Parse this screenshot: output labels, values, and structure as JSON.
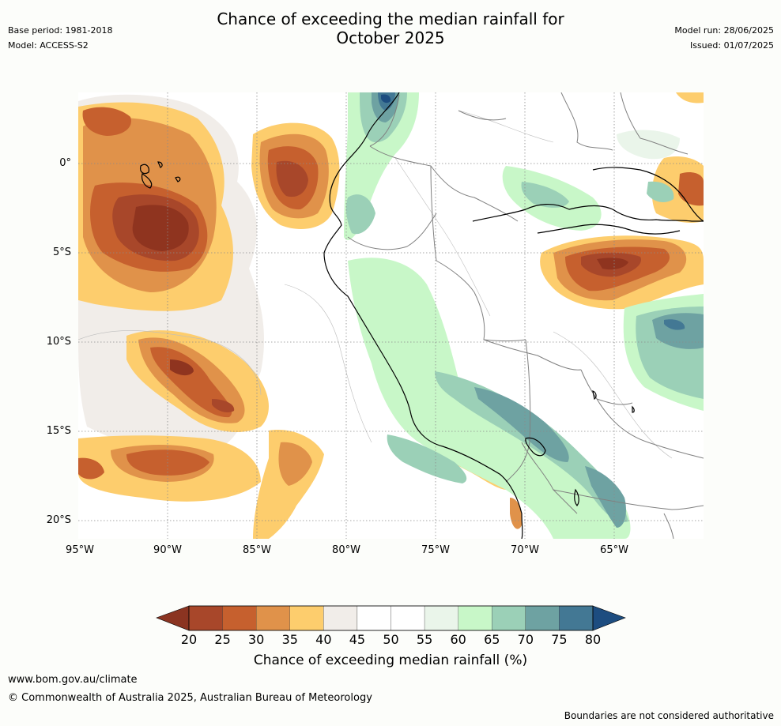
{
  "header": {
    "title_line1": "Chance of exceeding the median rainfall for",
    "title_line2": "October 2025",
    "base_period": "Base period: 1981-2018",
    "model": "Model: ACCESS-S2",
    "model_run": "Model run: 28/06/2025",
    "issued": "Issued: 01/07/2025"
  },
  "map": {
    "lat_labels": [
      "0°",
      "5°S",
      "10°S",
      "15°S",
      "20°S"
    ],
    "lon_labels": [
      "95°W",
      "90°W",
      "85°W",
      "80°W",
      "75°W",
      "70°W",
      "65°W"
    ],
    "icons": [
      "coastline",
      "country-borders",
      "rainfall-contours"
    ]
  },
  "legend": {
    "ticks": [
      "20",
      "25",
      "30",
      "35",
      "40",
      "45",
      "50",
      "55",
      "60",
      "65",
      "70",
      "75",
      "80"
    ],
    "colors": [
      "#a8472a",
      "#c6602e",
      "#e0924a",
      "#fdcd6d",
      "#f1ede9",
      "#ffffff",
      "#ffffff",
      "#eaf5ea",
      "#c8f7c8",
      "#9bd0b7",
      "#6ea2a2",
      "#437894"
    ],
    "low_arrow_color": "#8b3421",
    "high_arrow_color": "#1d4d80",
    "title": "Chance of exceeding median rainfall (%)"
  },
  "footer": {
    "url": "www.bom.gov.au/climate",
    "copyright": "© Commonwealth of Australia 2025, Australian Bureau of Meteorology",
    "note": "Boundaries are not considered authoritative"
  }
}
